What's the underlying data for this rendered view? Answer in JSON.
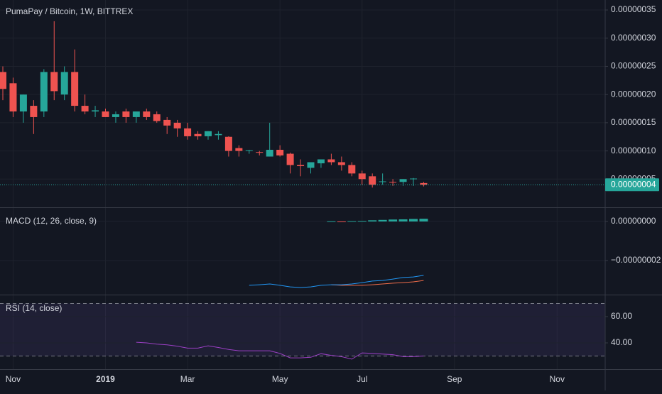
{
  "chart_data": [
    {
      "type": "candlestick",
      "title": "PumaPay / Bitcoin, 1W, BITTREX",
      "categories": [
        null,
        "Nov",
        null,
        null,
        null,
        null,
        null,
        null,
        null,
        null,
        "2019",
        null,
        null,
        null,
        null,
        null,
        null,
        null,
        "Mar",
        null,
        null,
        null,
        null,
        null,
        null,
        null,
        null,
        "May",
        null,
        null,
        null,
        null,
        null,
        null,
        null,
        "Jul",
        null,
        null,
        null,
        null,
        null,
        null,
        null,
        null,
        "Sep",
        null,
        null,
        null,
        null,
        null,
        null,
        null,
        null,
        null,
        "Nov",
        null,
        null,
        null,
        null
      ],
      "open": [
        2.4e-07,
        2.2e-07,
        1.7e-07,
        1.8e-07,
        1.7e-07,
        2.4e-07,
        2e-07,
        2.4e-07,
        1.8e-07,
        1.7e-07,
        1.7e-07,
        1.6e-07,
        1.7e-07,
        1.6e-07,
        1.7e-07,
        1.65e-07,
        1.55e-07,
        1.5e-07,
        1.4e-07,
        1.3e-07,
        1.26e-07,
        1.28e-07,
        1.25e-07,
        1.05e-07,
        1e-07,
        9.8e-08,
        9e-08,
        1.02e-07,
        9.5e-08,
        7.5e-08,
        7e-08,
        7.8e-08,
        8.5e-08,
        8e-08,
        7.5e-08,
        6e-08,
        5.5e-08,
        4.5e-08,
        4.5e-08,
        4.5e-08,
        5e-08,
        4.3e-08,
        null,
        null,
        null,
        null,
        null,
        null,
        null,
        null,
        null,
        null,
        null,
        null,
        null,
        null,
        null,
        null,
        null
      ],
      "high": [
        2.5e-07,
        2.3e-07,
        2e-07,
        1.9e-07,
        2.45e-07,
        3.3e-07,
        2.5e-07,
        2.8e-07,
        2e-07,
        1.8e-07,
        1.75e-07,
        1.7e-07,
        1.75e-07,
        1.7e-07,
        1.75e-07,
        1.7e-07,
        1.6e-07,
        1.55e-07,
        1.5e-07,
        1.35e-07,
        1.35e-07,
        1.35e-07,
        1.26e-07,
        1.1e-07,
        1.02e-07,
        1e-07,
        1.5e-07,
        1.1e-07,
        9.7e-08,
        8.5e-08,
        8e-08,
        8.5e-08,
        9.5e-08,
        9e-08,
        8e-08,
        6.5e-08,
        6e-08,
        6e-08,
        5e-08,
        5e-08,
        5.2e-08,
        4.5e-08,
        null,
        null,
        null,
        null,
        null,
        null,
        null,
        null,
        null,
        null,
        null,
        null,
        null,
        null,
        null,
        null,
        null
      ],
      "low": [
        1.9e-07,
        1.6e-07,
        1.5e-07,
        1.3e-07,
        1.6e-07,
        1.9e-07,
        1.9e-07,
        1.7e-07,
        1.65e-07,
        1.6e-07,
        1.6e-07,
        1.5e-07,
        1.5e-07,
        1.5e-07,
        1.55e-07,
        1.5e-07,
        1.3e-07,
        1.25e-07,
        1.2e-07,
        1.2e-07,
        1.2e-07,
        1.2e-07,
        9e-08,
        9e-08,
        9.5e-08,
        9.2e-08,
        9e-08,
        9e-08,
        6e-08,
        5.5e-08,
        6e-08,
        7e-08,
        7.5e-08,
        6.5e-08,
        5.5e-08,
        4e-08,
        3.5e-08,
        4e-08,
        3.8e-08,
        3.8e-08,
        3.8e-08,
        3.7e-08,
        null,
        null,
        null,
        null,
        null,
        null,
        null,
        null,
        null,
        null,
        null,
        null,
        null,
        null,
        null,
        null,
        null
      ],
      "close": [
        2.1e-07,
        1.7e-07,
        2e-07,
        1.6e-07,
        2.4e-07,
        2.06e-07,
        2.4e-07,
        1.8e-07,
        1.7e-07,
        1.72e-07,
        1.6e-07,
        1.65e-07,
        1.6e-07,
        1.7e-07,
        1.6e-07,
        1.53e-07,
        1.45e-07,
        1.4e-07,
        1.26e-07,
        1.26e-07,
        1.35e-07,
        1.3e-07,
        1e-07,
        1e-07,
        1.01e-07,
        9.7e-08,
        1.02e-07,
        9.2e-08,
        7.5e-08,
        7.3e-08,
        8e-08,
        8.5e-08,
        8e-08,
        7.5e-08,
        6e-08,
        5e-08,
        4e-08,
        4.6e-08,
        4.4e-08,
        5e-08,
        5.1e-08,
        4e-08,
        null,
        null,
        null,
        null,
        null,
        null,
        null,
        null,
        null,
        null,
        null,
        null,
        null,
        null,
        null,
        null,
        null
      ],
      "up_color": "#26a69a",
      "down_color": "#ef5350",
      "ylim": [
        0,
        3.677e-07
      ],
      "yticks": [
        {
          "value": 3.5e-07,
          "label": "0.00000035"
        },
        {
          "value": 3e-07,
          "label": "0.00000030"
        },
        {
          "value": 2.5e-07,
          "label": "0.00000025"
        },
        {
          "value": 2e-07,
          "label": "0.00000020"
        },
        {
          "value": 1.5e-07,
          "label": "0.00000015"
        },
        {
          "value": 1e-07,
          "label": "0.00000010"
        },
        {
          "value": 5e-08,
          "label": "0.00000005"
        }
      ],
      "last_price": {
        "value": 4e-08,
        "label": "0.00000004"
      },
      "grid": true
    },
    {
      "type": "macd",
      "title": "MACD (12, 26, close, 9)",
      "macd": {
        "color": "#2196f3",
        "values": [
          null,
          null,
          null,
          null,
          null,
          null,
          null,
          null,
          null,
          null,
          null,
          null,
          null,
          null,
          null,
          null,
          null,
          null,
          null,
          null,
          null,
          null,
          null,
          null,
          -3.27e-08,
          -3.24e-08,
          -3.2e-08,
          -3.27e-08,
          -3.35e-08,
          -3.38e-08,
          -3.35e-08,
          -3.27e-08,
          -3.24e-08,
          -3.24e-08,
          -3.2e-08,
          -3.13e-08,
          -3.05e-08,
          -3.02e-08,
          -2.95e-08,
          -2.87e-08,
          -2.84e-08,
          -2.76e-08,
          null,
          null,
          null,
          null,
          null,
          null,
          null,
          null,
          null,
          null,
          null,
          null,
          null,
          null,
          null,
          null,
          null
        ]
      },
      "signal": {
        "color": "#ef6c4a",
        "values": [
          null,
          null,
          null,
          null,
          null,
          null,
          null,
          null,
          null,
          null,
          null,
          null,
          null,
          null,
          null,
          null,
          null,
          null,
          null,
          null,
          null,
          null,
          null,
          null,
          null,
          null,
          null,
          null,
          null,
          null,
          null,
          null,
          -3.24e-08,
          -3.27e-08,
          -3.27e-08,
          -3.27e-08,
          -3.24e-08,
          -3.2e-08,
          -3.16e-08,
          -3.13e-08,
          -3.09e-08,
          -3.02e-08,
          null,
          null,
          null,
          null,
          null,
          null,
          null,
          null,
          null,
          null,
          null,
          null,
          null,
          null,
          null,
          null,
          null
        ]
      },
      "histogram": {
        "up_color": "#26a69a",
        "down_color": "#ef5350",
        "values": [
          null,
          null,
          null,
          null,
          null,
          null,
          null,
          null,
          null,
          null,
          null,
          null,
          null,
          null,
          null,
          null,
          null,
          null,
          null,
          null,
          null,
          null,
          null,
          null,
          null,
          null,
          null,
          null,
          null,
          null,
          null,
          null,
          1e-10,
          -3e-10,
          2e-10,
          3e-10,
          6e-10,
          8e-10,
          1e-09,
          1.1e-09,
          1.3e-09,
          1.4e-09,
          null,
          null,
          null,
          null,
          null,
          null,
          null,
          null,
          null,
          null,
          null,
          null,
          null,
          null,
          null,
          null,
          null
        ]
      },
      "ylim": [
        -3.745e-08,
        6.9e-09
      ],
      "yticks": [
        {
          "value": 0,
          "label": "0.00000000"
        },
        {
          "value": -2e-08,
          "label": "−0.00000002"
        }
      ],
      "grid": true
    },
    {
      "type": "line",
      "title": "RSI (14, close)",
      "series": [
        {
          "color": "#9b3fc4",
          "values": [
            null,
            null,
            null,
            null,
            null,
            null,
            null,
            null,
            null,
            null,
            null,
            null,
            null,
            40.5,
            40,
            39,
            38.5,
            37.5,
            36,
            36,
            37.8,
            36.5,
            35,
            34,
            34,
            34,
            34,
            32,
            28.6,
            28.6,
            29,
            31.8,
            30.5,
            29.5,
            27.6,
            32.4,
            32,
            31.5,
            31,
            29.5,
            29.5,
            30,
            null,
            null,
            null,
            null,
            null,
            null,
            null,
            null,
            null,
            null,
            null,
            null,
            null,
            null,
            null,
            null,
            null
          ]
        }
      ],
      "band": [
        30,
        70
      ],
      "band_color": "#7e57c2",
      "ylim": [
        20,
        76.2
      ],
      "yticks": [
        {
          "value": 60,
          "label": "60.00"
        },
        {
          "value": 40,
          "label": "40.00"
        }
      ],
      "grid": true
    }
  ]
}
